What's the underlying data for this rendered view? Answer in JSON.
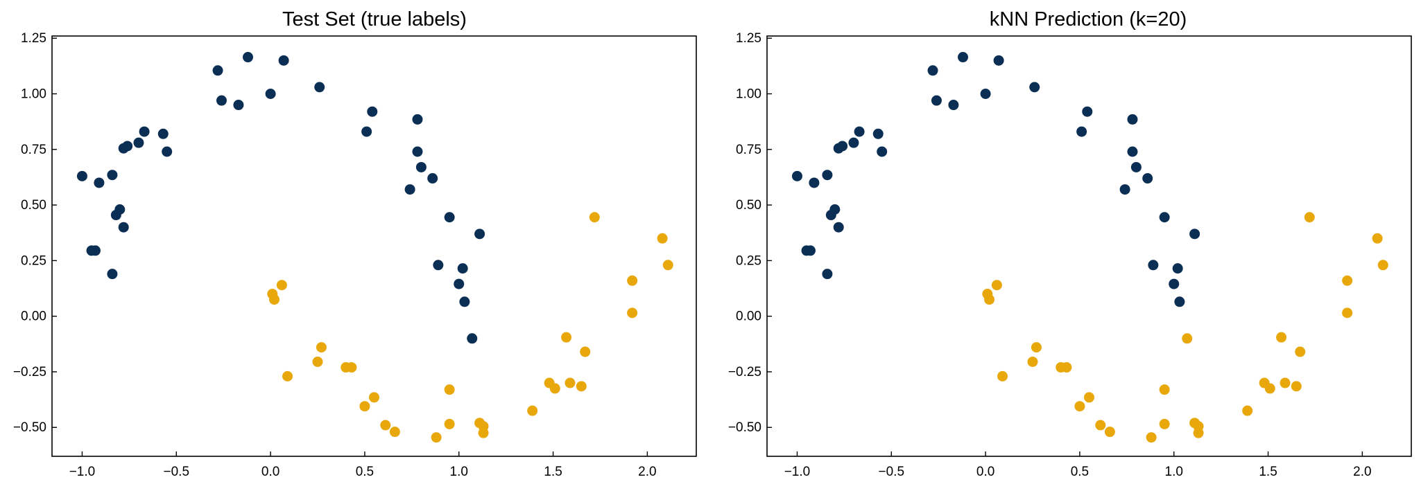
{
  "chart_data": [
    {
      "type": "scatter",
      "title": "Test Set (true labels)",
      "xlabel": "",
      "ylabel": "",
      "xlim": [
        -1.16,
        2.26
      ],
      "ylim": [
        -0.63,
        1.26
      ],
      "xticks": [
        -1.0,
        -0.5,
        0.0,
        0.5,
        1.0,
        1.5,
        2.0
      ],
      "xtick_labels": [
        "−1.0",
        "−0.5",
        "0.0",
        "0.5",
        "1.0",
        "1.5",
        "2.0"
      ],
      "yticks": [
        -0.5,
        -0.25,
        0.0,
        0.25,
        0.5,
        0.75,
        1.0,
        1.25
      ],
      "ytick_labels": [
        "−0.50",
        "−0.25",
        "0.00",
        "0.25",
        "0.50",
        "0.75",
        "1.00",
        "1.25"
      ],
      "grid": false,
      "series": [
        {
          "color": "#0b2f54",
          "points": [
            [
              -1.0,
              0.63
            ],
            [
              -0.91,
              0.6
            ],
            [
              -0.84,
              0.635
            ],
            [
              -0.95,
              0.295
            ],
            [
              -0.93,
              0.295
            ],
            [
              -0.84,
              0.19
            ],
            [
              -0.82,
              0.455
            ],
            [
              -0.8,
              0.48
            ],
            [
              -0.78,
              0.4
            ],
            [
              -0.78,
              0.755
            ],
            [
              -0.76,
              0.765
            ],
            [
              -0.7,
              0.78
            ],
            [
              -0.67,
              0.83
            ],
            [
              -0.57,
              0.82
            ],
            [
              -0.55,
              0.74
            ],
            [
              -0.28,
              1.105
            ],
            [
              -0.26,
              0.97
            ],
            [
              -0.17,
              0.95
            ],
            [
              -0.12,
              1.165
            ],
            [
              0.0,
              1.0
            ],
            [
              0.07,
              1.15
            ],
            [
              0.26,
              1.03
            ],
            [
              0.51,
              0.83
            ],
            [
              0.54,
              0.92
            ],
            [
              0.78,
              0.885
            ],
            [
              0.78,
              0.74
            ],
            [
              0.8,
              0.67
            ],
            [
              0.86,
              0.62
            ],
            [
              0.74,
              0.57
            ],
            [
              0.95,
              0.445
            ],
            [
              1.11,
              0.37
            ],
            [
              0.89,
              0.23
            ],
            [
              1.02,
              0.215
            ],
            [
              1.0,
              0.145
            ],
            [
              1.03,
              0.065
            ],
            [
              1.07,
              -0.1
            ]
          ]
        },
        {
          "color": "#e8a80c",
          "points": [
            [
              0.01,
              0.1
            ],
            [
              0.02,
              0.075
            ],
            [
              0.06,
              0.14
            ],
            [
              0.09,
              -0.27
            ],
            [
              0.27,
              -0.14
            ],
            [
              0.25,
              -0.205
            ],
            [
              0.4,
              -0.23
            ],
            [
              0.43,
              -0.23
            ],
            [
              0.55,
              -0.365
            ],
            [
              0.5,
              -0.405
            ],
            [
              0.61,
              -0.49
            ],
            [
              0.66,
              -0.52
            ],
            [
              0.88,
              -0.545
            ],
            [
              0.95,
              -0.33
            ],
            [
              0.95,
              -0.485
            ],
            [
              1.11,
              -0.48
            ],
            [
              1.13,
              -0.495
            ],
            [
              1.13,
              -0.525
            ],
            [
              1.39,
              -0.425
            ],
            [
              1.48,
              -0.3
            ],
            [
              1.51,
              -0.325
            ],
            [
              1.57,
              -0.095
            ],
            [
              1.59,
              -0.3
            ],
            [
              1.65,
              -0.315
            ],
            [
              1.67,
              -0.16
            ],
            [
              1.72,
              0.445
            ],
            [
              1.92,
              0.16
            ],
            [
              1.92,
              0.015
            ],
            [
              2.08,
              0.35
            ],
            [
              2.11,
              0.23
            ]
          ]
        }
      ]
    },
    {
      "type": "scatter",
      "title": "kNN Prediction (k=20)",
      "xlabel": "",
      "ylabel": "",
      "xlim": [
        -1.16,
        2.26
      ],
      "ylim": [
        -0.63,
        1.26
      ],
      "xticks": [
        -1.0,
        -0.5,
        0.0,
        0.5,
        1.0,
        1.5,
        2.0
      ],
      "xtick_labels": [
        "−1.0",
        "−0.5",
        "0.0",
        "0.5",
        "1.0",
        "1.5",
        "2.0"
      ],
      "yticks": [
        -0.5,
        -0.25,
        0.0,
        0.25,
        0.5,
        0.75,
        1.0,
        1.25
      ],
      "ytick_labels": [
        "−0.50",
        "−0.25",
        "0.00",
        "0.25",
        "0.50",
        "0.75",
        "1.00",
        "1.25"
      ],
      "grid": false,
      "series": [
        {
          "color": "#0b2f54",
          "points": [
            [
              -1.0,
              0.63
            ],
            [
              -0.91,
              0.6
            ],
            [
              -0.84,
              0.635
            ],
            [
              -0.95,
              0.295
            ],
            [
              -0.93,
              0.295
            ],
            [
              -0.84,
              0.19
            ],
            [
              -0.82,
              0.455
            ],
            [
              -0.8,
              0.48
            ],
            [
              -0.78,
              0.4
            ],
            [
              -0.78,
              0.755
            ],
            [
              -0.76,
              0.765
            ],
            [
              -0.7,
              0.78
            ],
            [
              -0.67,
              0.83
            ],
            [
              -0.57,
              0.82
            ],
            [
              -0.55,
              0.74
            ],
            [
              -0.28,
              1.105
            ],
            [
              -0.26,
              0.97
            ],
            [
              -0.17,
              0.95
            ],
            [
              -0.12,
              1.165
            ],
            [
              0.0,
              1.0
            ],
            [
              0.07,
              1.15
            ],
            [
              0.26,
              1.03
            ],
            [
              0.51,
              0.83
            ],
            [
              0.54,
              0.92
            ],
            [
              0.78,
              0.885
            ],
            [
              0.78,
              0.74
            ],
            [
              0.8,
              0.67
            ],
            [
              0.86,
              0.62
            ],
            [
              0.74,
              0.57
            ],
            [
              0.95,
              0.445
            ],
            [
              1.11,
              0.37
            ],
            [
              0.89,
              0.23
            ],
            [
              1.02,
              0.215
            ],
            [
              1.0,
              0.145
            ],
            [
              1.03,
              0.065
            ]
          ]
        },
        {
          "color": "#e8a80c",
          "points": [
            [
              1.07,
              -0.1
            ],
            [
              0.01,
              0.1
            ],
            [
              0.02,
              0.075
            ],
            [
              0.06,
              0.14
            ],
            [
              0.09,
              -0.27
            ],
            [
              0.27,
              -0.14
            ],
            [
              0.25,
              -0.205
            ],
            [
              0.4,
              -0.23
            ],
            [
              0.43,
              -0.23
            ],
            [
              0.55,
              -0.365
            ],
            [
              0.5,
              -0.405
            ],
            [
              0.61,
              -0.49
            ],
            [
              0.66,
              -0.52
            ],
            [
              0.88,
              -0.545
            ],
            [
              0.95,
              -0.33
            ],
            [
              0.95,
              -0.485
            ],
            [
              1.11,
              -0.48
            ],
            [
              1.13,
              -0.495
            ],
            [
              1.13,
              -0.525
            ],
            [
              1.39,
              -0.425
            ],
            [
              1.48,
              -0.3
            ],
            [
              1.51,
              -0.325
            ],
            [
              1.57,
              -0.095
            ],
            [
              1.59,
              -0.3
            ],
            [
              1.65,
              -0.315
            ],
            [
              1.67,
              -0.16
            ],
            [
              1.72,
              0.445
            ],
            [
              1.92,
              0.16
            ],
            [
              1.92,
              0.015
            ],
            [
              2.08,
              0.35
            ],
            [
              2.11,
              0.23
            ]
          ]
        }
      ]
    }
  ]
}
